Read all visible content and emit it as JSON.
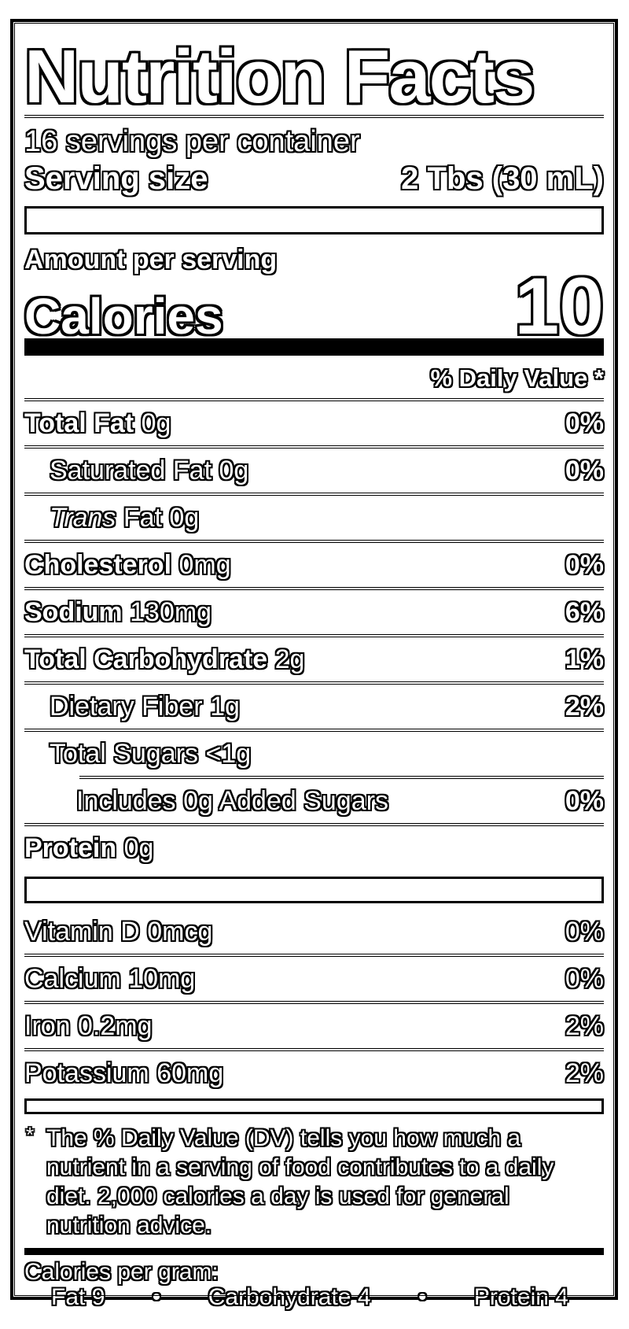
{
  "label": {
    "title": "Nutrition Facts",
    "servings_per_container": "16 servings per container",
    "serving_size_label": "Serving size",
    "serving_size_value": "2 Tbs (30 mL)",
    "amount_per_serving": "Amount per serving",
    "calories_label": "Calories",
    "calories_value": "10",
    "daily_value_header": "% Daily Value *",
    "nutrients": [
      {
        "name": "Total Fat",
        "amount": "0g",
        "dv": "0%"
      },
      {
        "name": "Saturated Fat",
        "amount": "0g",
        "dv": "0%"
      },
      {
        "name_italic": "Trans",
        "name": "Fat",
        "amount": "0g",
        "dv": ""
      },
      {
        "name": "Cholesterol",
        "amount": "0mg",
        "dv": "0%"
      },
      {
        "name": "Sodium",
        "amount": "130mg",
        "dv": "6%"
      },
      {
        "name": "Total Carbohydrate",
        "amount": "2g",
        "dv": "1%"
      },
      {
        "name": "Dietary Fiber",
        "amount": "1g",
        "dv": "2%"
      },
      {
        "name": "Total Sugars",
        "amount": "<1g",
        "dv": ""
      },
      {
        "name": "Includes 0g Added Sugars",
        "amount": "",
        "dv": "0%"
      },
      {
        "name": "Protein",
        "amount": "0g",
        "dv": ""
      }
    ],
    "vitamins": [
      {
        "name": "Vitamin D",
        "amount": "0mcg",
        "dv": "0%"
      },
      {
        "name": "Calcium",
        "amount": "10mg",
        "dv": "0%"
      },
      {
        "name": "Iron",
        "amount": "0.2mg",
        "dv": "2%"
      },
      {
        "name": "Potassium",
        "amount": "60mg",
        "dv": "2%"
      }
    ],
    "footnote_marker": "*",
    "footnote": "The % Daily Value (DV) tells you how much a nutrient in a serving of food contributes to a daily diet. 2,000 calories a day is used for general nutrition advice.",
    "calories_per_gram": {
      "heading": "Calories per gram:",
      "bullet": "•",
      "items": [
        {
          "name": "Fat",
          "value": "9"
        },
        {
          "name": "Carbohydrate",
          "value": "4"
        },
        {
          "name": "Protein",
          "value": "4"
        }
      ]
    },
    "colors": {
      "text": "#000000",
      "background": "#ffffff"
    }
  }
}
